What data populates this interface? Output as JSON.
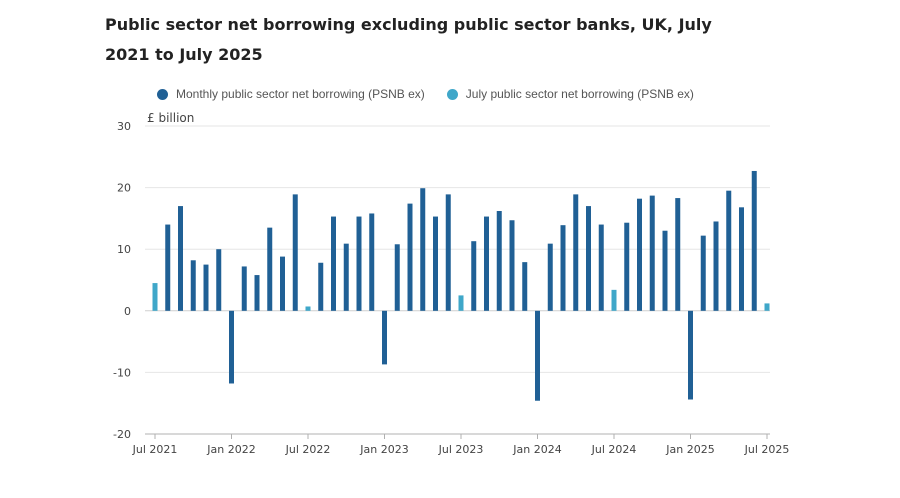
{
  "title": "Public sector net borrowing excluding public sector banks, UK, July 2021 to July 2025",
  "colors": {
    "monthly": "#206095",
    "july": "#3fa7c9",
    "grid": "#e6e6e6",
    "axis": "#b0b0b0"
  },
  "legend": [
    {
      "label": "Monthly public sector net borrowing (PSNB ex)",
      "color": "#206095"
    },
    {
      "label": "July public sector net borrowing (PSNB ex)",
      "color": "#3fa7c9"
    }
  ],
  "chart_data": {
    "type": "bar",
    "ylabel": "£ billion",
    "ylim": [
      -20,
      30
    ],
    "yticks": [
      30,
      20,
      10,
      0,
      -10,
      -20
    ],
    "grid": true,
    "legend_position": "top",
    "x_tick_labels": [
      {
        "index": 0,
        "label": "Jul 2021"
      },
      {
        "index": 6,
        "label": "Jan 2022"
      },
      {
        "index": 12,
        "label": "Jul 2022"
      },
      {
        "index": 18,
        "label": "Jan 2023"
      },
      {
        "index": 24,
        "label": "Jul 2023"
      },
      {
        "index": 30,
        "label": "Jan 2024"
      },
      {
        "index": 36,
        "label": "Jul 2024"
      },
      {
        "index": 42,
        "label": "Jan 2025"
      },
      {
        "index": 48,
        "label": "Jul 2025"
      }
    ],
    "categories": [
      "Jul 2021",
      "Aug 2021",
      "Sep 2021",
      "Oct 2021",
      "Nov 2021",
      "Dec 2021",
      "Jan 2022",
      "Feb 2022",
      "Mar 2022",
      "Apr 2022",
      "May 2022",
      "Jun 2022",
      "Jul 2022",
      "Aug 2022",
      "Sep 2022",
      "Oct 2022",
      "Nov 2022",
      "Dec 2022",
      "Jan 2023",
      "Feb 2023",
      "Mar 2023",
      "Apr 2023",
      "May 2023",
      "Jun 2023",
      "Jul 2023",
      "Aug 2023",
      "Sep 2023",
      "Oct 2023",
      "Nov 2023",
      "Dec 2023",
      "Jan 2024",
      "Feb 2024",
      "Mar 2024",
      "Apr 2024",
      "May 2024",
      "Jun 2024",
      "Jul 2024",
      "Aug 2024",
      "Sep 2024",
      "Oct 2024",
      "Nov 2024",
      "Dec 2024",
      "Jan 2025",
      "Feb 2025",
      "Mar 2025",
      "Apr 2025",
      "May 2025",
      "Jun 2025",
      "Jul 2025"
    ],
    "series": [
      {
        "name": "Monthly public sector net borrowing (PSNB ex)",
        "values": [
          null,
          14.0,
          17.0,
          8.2,
          7.5,
          10.0,
          -11.8,
          7.2,
          5.8,
          13.5,
          8.8,
          18.9,
          null,
          7.8,
          15.3,
          10.9,
          15.3,
          15.8,
          -8.7,
          10.8,
          17.4,
          19.9,
          15.3,
          18.9,
          null,
          11.3,
          15.3,
          16.2,
          14.7,
          7.9,
          -14.6,
          10.9,
          13.9,
          18.9,
          17.0,
          14.0,
          null,
          14.3,
          18.2,
          18.7,
          13.0,
          18.3,
          -14.4,
          12.2,
          14.5,
          19.5,
          16.8,
          22.7,
          null
        ]
      },
      {
        "name": "July public sector net borrowing (PSNB ex)",
        "values": [
          4.5,
          null,
          null,
          null,
          null,
          null,
          null,
          null,
          null,
          null,
          null,
          null,
          0.7,
          null,
          null,
          null,
          null,
          null,
          null,
          null,
          null,
          null,
          null,
          null,
          2.5,
          null,
          null,
          null,
          null,
          null,
          null,
          null,
          null,
          null,
          null,
          null,
          3.4,
          null,
          null,
          null,
          null,
          null,
          null,
          null,
          null,
          null,
          null,
          null,
          1.2
        ]
      }
    ]
  }
}
